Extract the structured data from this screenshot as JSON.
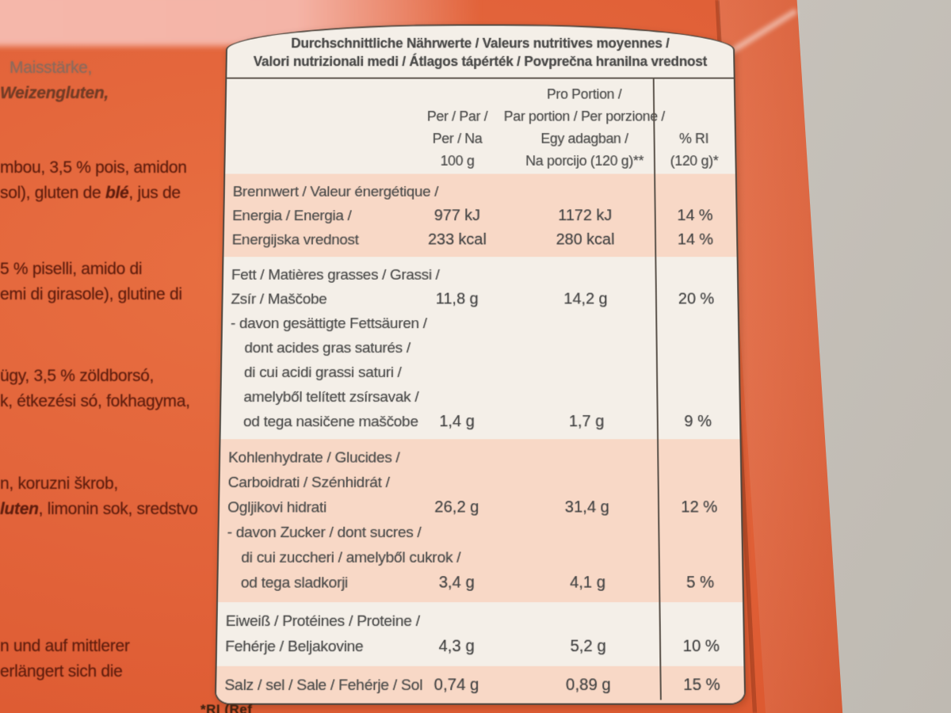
{
  "scene": {
    "surface_color": "#c9c4bd",
    "package_color": "#e2633a",
    "package_top_color": "#f4b4a7",
    "card_color": "#f4efe8",
    "row_highlight_color": "#f8d8c6",
    "table_text_color": "#4c4c4b",
    "ingredient_text_color": "#5f1d0d"
  },
  "ingredients": {
    "german_fragment": {
      "line1": "Maisstärke,",
      "line2": "Weizengluten,"
    },
    "french_fragment": {
      "line1": "mbou, 3,5 % pois, amidon",
      "line2_pre": "sol), gluten de ",
      "line2_bold": "blé",
      "line2_post": ", jus de"
    },
    "italian_fragment": {
      "line1": "5 % piselli, amido di",
      "line2": "emi di girasole), glutine di"
    },
    "hungarian_fragment": {
      "line1": "ügy, 3,5 % zöldborsó,",
      "line2": "k, étkezési só, fokhagyma,"
    },
    "slovenian_fragment": {
      "line1": "n, koruzni škrob,",
      "line2_bold": "luten",
      "line2_post": ", limonin sok, sredstvo"
    },
    "preparation_fragment": {
      "line1": "n und auf mittlerer",
      "line2": "erlängert sich die"
    }
  },
  "table": {
    "title_line1": "Durchschnittliche Nährwerte / Valeurs nutritives moyennes /",
    "title_line2": "Valori nutrizionali medi / Átlagos tápérték / Povprečna hranilna vrednost",
    "col_per100": [
      "Per / Par /",
      "Per / Na",
      "100 g"
    ],
    "col_portion": [
      "Pro Portion /",
      "Par portion / Per porzione /",
      "Egy adagban /",
      "Na porcijo (120 g)**"
    ],
    "col_ri": [
      "% RI",
      "(120 g)*"
    ],
    "rows": [
      {
        "name": "energy",
        "labels": [
          "Brennwert / Valeur énergétique /",
          "Energia / Energia /",
          "Energijska vrednost"
        ],
        "per100": [
          "977 kJ",
          "233 kcal"
        ],
        "portion": [
          "1172 kJ",
          "280 kcal"
        ],
        "ri": [
          "14 %",
          "14 %"
        ]
      },
      {
        "name": "fat",
        "labels": [
          "Fett / Matières grasses / Grassi /",
          "Zsír / Maščobe"
        ],
        "per100": [
          "11,8 g"
        ],
        "portion": [
          "14,2 g"
        ],
        "ri": [
          "20 %"
        ]
      },
      {
        "name": "saturated-fat",
        "labels": [
          "- davon gesättigte Fettsäuren /",
          "dont acides gras saturés /",
          "di cui acidi grassi saturi /",
          "amelyből telített zsírsavak /",
          "od tega nasičene maščobe"
        ],
        "per100": [
          "1,4 g"
        ],
        "portion": [
          "1,7 g"
        ],
        "ri": [
          "9 %"
        ]
      },
      {
        "name": "carbohydrate",
        "labels": [
          "Kohlenhydrate / Glucides /",
          "Carboidrati / Szénhidrát /",
          "Ogljikovi hidrati"
        ],
        "per100": [
          "26,2 g"
        ],
        "portion": [
          "31,4 g"
        ],
        "ri": [
          "12 %"
        ]
      },
      {
        "name": "sugars",
        "labels": [
          "- davon Zucker / dont sucres /",
          "di cui zuccheri / amelyből cukrok /",
          "od tega sladkorji"
        ],
        "per100": [
          "3,4 g"
        ],
        "portion": [
          "4,1 g"
        ],
        "ri": [
          "5 %"
        ]
      },
      {
        "name": "protein",
        "labels": [
          "Eiweiß / Protéines / Proteine /",
          "Fehérje / Beljakovine"
        ],
        "per100": [
          "4,3 g"
        ],
        "portion": [
          "5,2 g"
        ],
        "ri": [
          "10 %"
        ]
      },
      {
        "name": "salt",
        "labels": [
          "Salz / sel / Sale / Fehérje / Sol"
        ],
        "per100": [
          "0,74 g"
        ],
        "portion": [
          "0,89 g"
        ],
        "ri": [
          "15 %"
        ]
      }
    ],
    "footnote": "*RI (Ref"
  }
}
